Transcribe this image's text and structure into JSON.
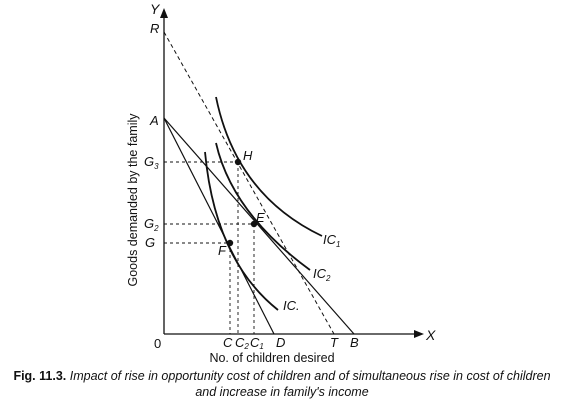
{
  "diagram": {
    "axis_labels": {
      "y": "Y",
      "x": "X",
      "origin": "0"
    },
    "y_axis_title": "Goods demanded by the family",
    "x_axis_title": "No. of children desired",
    "y_points": {
      "R": "R",
      "A": "A",
      "G3": "G",
      "G3_sub": "3",
      "G2": "G",
      "G2_sub": "2",
      "G": "G"
    },
    "x_points": {
      "C": "C",
      "C2": "C",
      "C2_sub": "2",
      "C1": "C",
      "C1_sub": "1",
      "D": "D",
      "T": "T",
      "B": "B"
    },
    "curve_points": {
      "H": "H",
      "E": "E",
      "F": "F"
    },
    "curves": {
      "IC1": "IC",
      "IC1_sub": "1",
      "IC2": "IC",
      "IC2_sub": "2",
      "IC": "IC."
    }
  },
  "caption": {
    "fig_no": "Fig. 11.3.",
    "line1": "Impact of rise in opportunity cost of children and of simultaneous rise in cost of children",
    "line2": "and increase in family's income"
  }
}
